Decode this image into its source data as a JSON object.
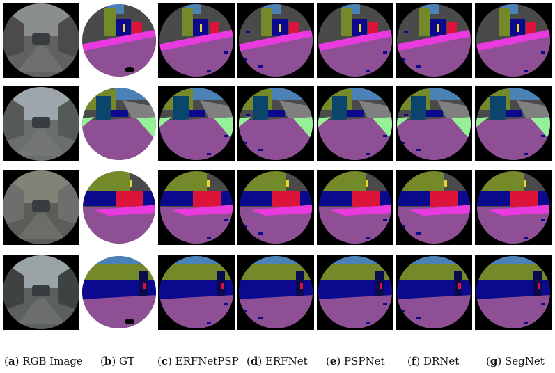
{
  "captions": [
    {
      "letter": "a",
      "text": "RGB Image"
    },
    {
      "letter": "b",
      "text": "GT"
    },
    {
      "letter": "c",
      "text": "ERFNetPSP"
    },
    {
      "letter": "d",
      "text": "ERFNet"
    },
    {
      "letter": "e",
      "text": "PSPNet"
    },
    {
      "letter": "f",
      "text": "DRNet"
    },
    {
      "letter": "g",
      "text": "SegNet"
    }
  ],
  "colors": {
    "road": "#8e4f95",
    "sidewalk": "#e83adf",
    "building": "#4a4a4a",
    "vegetation": "#748a2a",
    "sky": "#4a82b8",
    "car": "#0b0a8e",
    "person": "#dc143c",
    "pole": "#b5b5b5",
    "sign": "#e8d632",
    "truck": "#0b456b",
    "terrain": "#96f096",
    "background": "#000000"
  }
}
